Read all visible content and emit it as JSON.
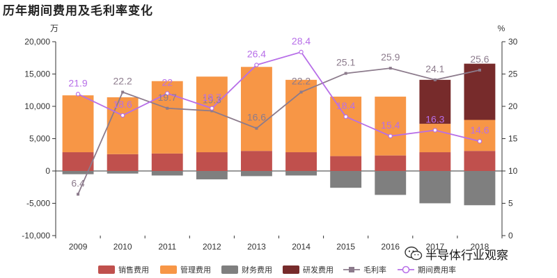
{
  "title": "历年期间费用及毛利率变化",
  "chart_data": {
    "type": "bar",
    "stacked": true,
    "categories": [
      "2009",
      "2010",
      "2011",
      "2012",
      "2013",
      "2014",
      "2015",
      "2016",
      "2017",
      "2018"
    ],
    "left_axis": {
      "unit_label": "万",
      "min": -10000,
      "max": 20000,
      "step": 5000,
      "tick_labels": [
        "-10,000",
        "-5,000",
        "0",
        "5,000",
        "10,000",
        "15,000",
        "20,000"
      ]
    },
    "right_axis": {
      "unit_label": "%",
      "min": 0,
      "max": 30,
      "step": 5,
      "tick_labels": [
        "0",
        "5",
        "10",
        "15",
        "20",
        "25",
        "30"
      ]
    },
    "grid": false,
    "legend_position": "bottom",
    "series": [
      {
        "name": "销售费用",
        "kind": "bar",
        "axis": "left",
        "color": "#c0504d",
        "values": [
          2900,
          2600,
          2700,
          2900,
          3100,
          2900,
          2300,
          2400,
          2900,
          3100
        ]
      },
      {
        "name": "管理费用",
        "kind": "bar",
        "axis": "left",
        "color": "#f79646",
        "values": [
          8800,
          8800,
          11200,
          11700,
          13000,
          11200,
          9200,
          9100,
          4400,
          4800
        ]
      },
      {
        "name": "财务费用",
        "kind": "bar",
        "axis": "left",
        "color": "#7f7f7f",
        "values": [
          -500,
          -400,
          -700,
          -1300,
          -800,
          -700,
          -2600,
          -3700,
          -5000,
          -5300
        ]
      },
      {
        "name": "研发费用",
        "kind": "bar",
        "axis": "left",
        "color": "#772b2b",
        "values": [
          0,
          0,
          0,
          0,
          0,
          0,
          0,
          0,
          6800,
          8700
        ]
      },
      {
        "name": "毛利率",
        "kind": "line",
        "axis": "right",
        "color": "#8c7b8c",
        "label_color": "#8c7b8c",
        "values": [
          6.4,
          22.2,
          19.7,
          19.3,
          16.6,
          22.2,
          25.1,
          25.9,
          24.1,
          25.6
        ],
        "labels": [
          "6.4",
          "22.2",
          "19.7",
          "19.3",
          "16.6",
          "22.2",
          "25.1",
          "25.9",
          "24.1",
          "25.6"
        ]
      },
      {
        "name": "期间费用率",
        "kind": "line",
        "axis": "right",
        "color": "#b76ee8",
        "label_color": "#b76ee8",
        "values": [
          21.9,
          18.6,
          22.0,
          19.7,
          26.4,
          28.4,
          18.4,
          15.4,
          16.3,
          14.6
        ],
        "labels": [
          "21.9",
          "18.6",
          "22",
          "19.7",
          "26.4",
          "28.4",
          "18.4",
          "15.4",
          "16.3",
          "14.6"
        ]
      }
    ]
  },
  "watermark": {
    "text": "半导体行业观察",
    "icon": "wechat-icon"
  }
}
